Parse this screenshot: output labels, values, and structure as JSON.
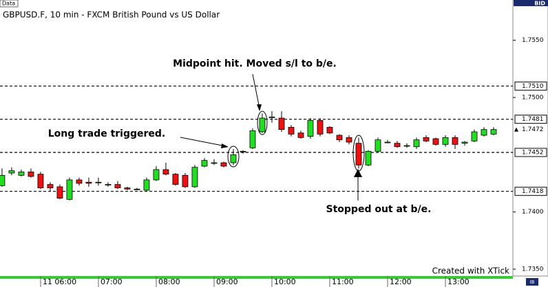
{
  "chart_data": {
    "type": "candlestick",
    "title": "GBPUSD.F, 10 min - FXCM British Pound vs US Dollar",
    "header_tab": "Data",
    "price_type": "BID",
    "credit": "Created with XTick",
    "logo": "IB",
    "up_color": "#22dd22",
    "down_color": "#ee1111",
    "xlim": [
      -0.21,
      53.0
    ],
    "ylim": [
      1.7344,
      1.7578
    ],
    "xticks": [
      {
        "value": 4,
        "label": "11 06:00"
      },
      {
        "value": 10,
        "label": "07:00"
      },
      {
        "value": 16,
        "label": "08:00"
      },
      {
        "value": 22,
        "label": "09:00"
      },
      {
        "value": 28,
        "label": "10:00"
      },
      {
        "value": 34,
        "label": "11:00"
      },
      {
        "value": 40,
        "label": "12:00"
      },
      {
        "value": 46,
        "label": "13:00"
      }
    ],
    "yticks": [
      {
        "value": 1.735,
        "label": "1.7350"
      },
      {
        "value": 1.74,
        "label": "1.7400"
      },
      {
        "value": 1.75,
        "label": "1.7500"
      },
      {
        "value": 1.755,
        "label": "1.7550"
      }
    ],
    "levels": [
      {
        "value": 1.751,
        "label": "1.7510"
      },
      {
        "value": 1.7481,
        "label": "1.7481"
      },
      {
        "value": 1.7452,
        "label": "1.7452"
      },
      {
        "value": 1.7418,
        "label": "1.7418"
      }
    ],
    "last_price": {
      "value": 1.7472,
      "label": "1.7472"
    },
    "annotations": [
      "Midpoint hit. Moved s/l to b/e.",
      "Long trade triggered.",
      "Stopped out at b/e."
    ],
    "x": [
      0,
      1,
      2,
      3,
      4,
      5,
      6,
      7,
      8,
      9,
      10,
      11,
      12,
      13,
      14,
      15,
      16,
      17,
      18,
      19,
      20,
      21,
      22,
      23,
      24,
      25,
      26,
      27,
      28,
      29,
      30,
      31,
      32,
      33,
      34,
      35,
      36,
      37,
      38,
      39,
      40,
      41,
      42,
      43,
      44,
      45,
      46,
      47,
      48,
      49,
      50,
      51
    ],
    "open": [
      1.7423,
      1.7434,
      1.7432,
      1.7435,
      1.7433,
      1.7424,
      1.7422,
      1.7411,
      1.7428,
      1.7426,
      1.7426,
      1.7424,
      1.7424,
      1.7421,
      1.742,
      1.7419,
      1.7428,
      1.7437,
      1.7433,
      1.7432,
      1.7422,
      1.744,
      1.7443,
      1.7443,
      1.7443,
      1.7453,
      1.7456,
      1.747,
      1.7483,
      1.7482,
      1.7474,
      1.7469,
      1.7466,
      1.748,
      1.7474,
      1.7467,
      1.7465,
      1.746,
      1.7441,
      1.7453,
      1.7461,
      1.746,
      1.7458,
      1.7457,
      1.7465,
      1.7464,
      1.7459,
      1.7465,
      1.746,
      1.7462,
      1.7467,
      1.7468
    ],
    "high": [
      1.7438,
      1.7439,
      1.7437,
      1.7438,
      1.7435,
      1.7426,
      1.7424,
      1.743,
      1.743,
      1.743,
      1.743,
      1.7426,
      1.7427,
      1.7422,
      1.7421,
      1.743,
      1.744,
      1.7443,
      1.7434,
      1.7434,
      1.7441,
      1.7447,
      1.7446,
      1.7444,
      1.7455,
      1.7454,
      1.7473,
      1.7486,
      1.7488,
      1.7488,
      1.7476,
      1.7471,
      1.7482,
      1.7482,
      1.7475,
      1.7468,
      1.7467,
      1.7465,
      1.7454,
      1.7465,
      1.7463,
      1.7462,
      1.746,
      1.7465,
      1.7467,
      1.7465,
      1.7467,
      1.7467,
      1.7462,
      1.7472,
      1.7474,
      1.7474
    ],
    "low": [
      1.7422,
      1.7432,
      1.7431,
      1.743,
      1.742,
      1.7418,
      1.7411,
      1.741,
      1.7423,
      1.7422,
      1.7423,
      1.7422,
      1.742,
      1.7419,
      1.7419,
      1.7418,
      1.7427,
      1.7432,
      1.7423,
      1.7421,
      1.7421,
      1.7439,
      1.7441,
      1.7439,
      1.7441,
      1.7451,
      1.7455,
      1.7469,
      1.7478,
      1.747,
      1.7466,
      1.7464,
      1.7464,
      1.7466,
      1.7468,
      1.7461,
      1.7459,
      1.7438,
      1.744,
      1.7452,
      1.746,
      1.7456,
      1.7456,
      1.7455,
      1.7461,
      1.7458,
      1.7457,
      1.7455,
      1.7458,
      1.7461,
      1.7466,
      1.7467
    ],
    "close": [
      1.7432,
      1.7436,
      1.7435,
      1.7431,
      1.7421,
      1.7421,
      1.7412,
      1.7428,
      1.7425,
      1.7425,
      1.7426,
      1.7424,
      1.7421,
      1.742,
      1.742,
      1.7428,
      1.7437,
      1.7433,
      1.7424,
      1.7422,
      1.7439,
      1.7445,
      1.7443,
      1.744,
      1.745,
      1.7453,
      1.7471,
      1.7482,
      1.7483,
      1.7472,
      1.7468,
      1.7465,
      1.748,
      1.7468,
      1.7469,
      1.7463,
      1.7461,
      1.7441,
      1.7453,
      1.7463,
      1.7461,
      1.7457,
      1.7458,
      1.7463,
      1.7462,
      1.7459,
      1.7465,
      1.7459,
      1.7461,
      1.747,
      1.7472,
      1.7472
    ]
  }
}
